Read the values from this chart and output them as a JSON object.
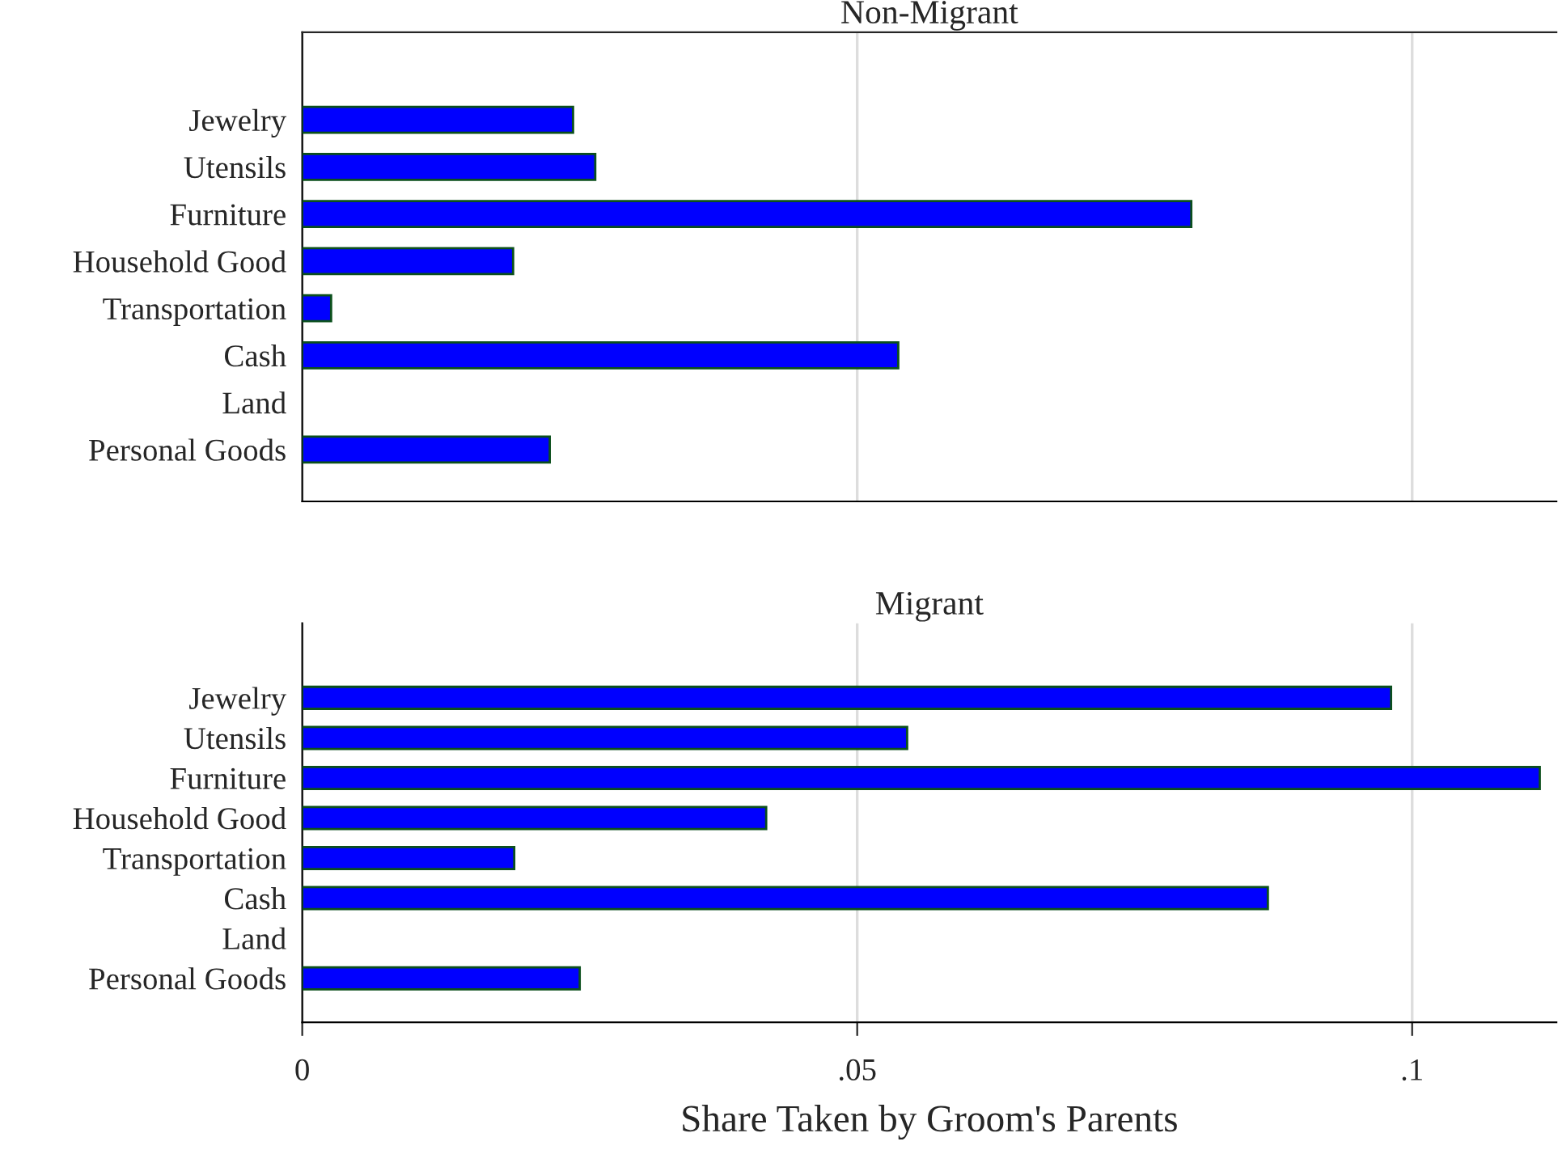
{
  "chart_data": [
    {
      "type": "bar",
      "orientation": "horizontal",
      "title": "Non-Migrant",
      "categories": [
        "Jewelry",
        "Utensils",
        "Furniture",
        "Household Good",
        "Transportation",
        "Cash",
        "Land",
        "Personal Goods"
      ],
      "series": [
        {
          "color": "#0000ff",
          "values": [
            0.0244,
            0.0264,
            0.0801,
            0.019,
            0.0026,
            0.0537,
            0,
            0.0223
          ]
        }
      ],
      "xlim": [
        0,
        0.113
      ],
      "xticks": [
        {
          "value": 0,
          "label": null
        },
        {
          "value": 0.05,
          "label": null
        },
        {
          "value": 0.1,
          "label": null
        }
      ],
      "tick_labels": "y",
      "grid": "x"
    },
    {
      "type": "bar",
      "orientation": "horizontal",
      "title": "Migrant",
      "xlabel": "Share Taken by Groom's Parents",
      "categories": [
        "Jewelry",
        "Utensils",
        "Furniture",
        "Household Good",
        "Transportation",
        "Cash",
        "Land",
        "Personal Goods"
      ],
      "series": [
        {
          "color": "#0000ff",
          "values": [
            0.0981,
            0.0545,
            0.1115,
            0.0418,
            0.0191,
            0.087,
            0,
            0.025
          ]
        }
      ],
      "xlim": [
        0,
        0.113
      ],
      "xticks": [
        {
          "value": 0,
          "label": "0"
        },
        {
          "value": 0.05,
          "label": ".05"
        },
        {
          "value": 0.1,
          "label": ".1"
        }
      ],
      "grid": "x"
    }
  ]
}
